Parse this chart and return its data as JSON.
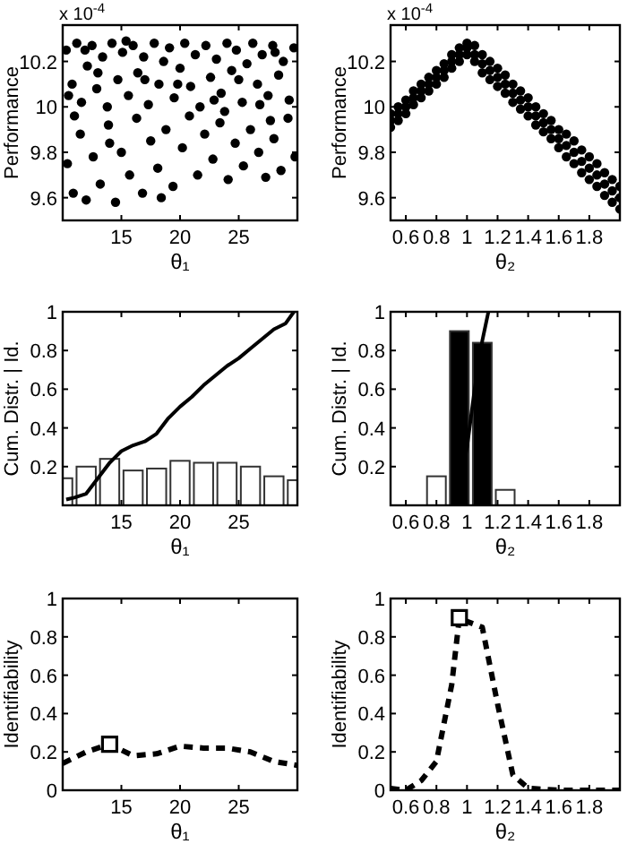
{
  "chart_data": [
    {
      "type": "scatter",
      "xlabel": "θ₁",
      "ylabel": "Performance",
      "annotations": [
        "x 10$^{-4}$"
      ],
      "xlim": [
        10,
        30
      ],
      "xticks": [
        15,
        20,
        25
      ],
      "ylim": [
        9.5,
        10.36
      ],
      "yticks": [
        9.6,
        9.8,
        10,
        10.2
      ],
      "marker": "circle",
      "series": [
        {
          "color": "#000000",
          "x": [
            10.3,
            10.8,
            11.2,
            11.6,
            12.1,
            12.5,
            12.9,
            13.4,
            13.8,
            14.2,
            14.7,
            15.1,
            15.6,
            16.0,
            16.4,
            16.9,
            17.3,
            17.8,
            18.2,
            18.6,
            19.1,
            19.5,
            20.0,
            20.4,
            20.9,
            21.3,
            21.7,
            22.2,
            22.6,
            23.1,
            23.5,
            24.0,
            24.4,
            24.8,
            25.3,
            25.7,
            26.2,
            26.6,
            27.0,
            27.5,
            27.9,
            28.4,
            28.8,
            29.3,
            29.7,
            10.5,
            11.9,
            13.0,
            15.4,
            17.0,
            19.8,
            22.9,
            25.0,
            26.8,
            28.1,
            10.4,
            10.9,
            11.5,
            12.0,
            12.6,
            13.2,
            13.9,
            14.5,
            15.0,
            15.7,
            16.3,
            16.8,
            17.5,
            18.1,
            18.8,
            19.4,
            20.2,
            20.8,
            21.5,
            22.1,
            22.8,
            23.4,
            24.1,
            24.7,
            25.4,
            26.0,
            26.7,
            27.3,
            28.0,
            28.6,
            29.2,
            29.8,
            11.0,
            14.0,
            18.4,
            23.8,
            27.7
          ],
          "values": [
            10.25,
            10.1,
            10.28,
            10.02,
            10.18,
            10.27,
            10.08,
            10.22,
            10.0,
            10.28,
            10.12,
            10.24,
            10.05,
            10.27,
            10.15,
            10.22,
            10.01,
            10.28,
            10.1,
            10.2,
            10.26,
            10.04,
            10.17,
            10.28,
            10.09,
            10.23,
            10.0,
            10.27,
            10.13,
            10.21,
            10.06,
            10.28,
            10.16,
            10.25,
            10.02,
            10.19,
            10.28,
            10.1,
            10.23,
            10.05,
            10.27,
            10.14,
            10.2,
            10.03,
            10.26,
            10.05,
            10.25,
            10.15,
            10.29,
            10.12,
            10.1,
            10.03,
            10.12,
            10.01,
            10.24,
            9.75,
            9.62,
            9.88,
            9.59,
            9.78,
            9.66,
            9.92,
            9.58,
            9.8,
            9.7,
            9.95,
            9.62,
            9.85,
            9.73,
            9.9,
            9.65,
            9.82,
            9.96,
            9.7,
            9.88,
            9.77,
            9.93,
            9.68,
            9.84,
            9.74,
            9.9,
            9.8,
            9.69,
            9.86,
            9.72,
            9.95,
            9.78,
            9.96,
            9.84,
            9.6,
            9.98,
            9.94
          ]
        }
      ]
    },
    {
      "type": "scatter",
      "xlabel": "θ₂",
      "ylabel": "Performance",
      "annotations": [
        "x 10$^{-4}$"
      ],
      "xlim": [
        0.5,
        2.0
      ],
      "xticks": [
        0.6,
        0.8,
        1,
        1.2,
        1.4,
        1.6,
        1.8
      ],
      "ylim": [
        9.5,
        10.36
      ],
      "yticks": [
        9.6,
        9.8,
        10,
        10.2
      ],
      "marker": "circle",
      "series": [
        {
          "color": "#000000",
          "x": [
            0.5,
            0.5,
            0.5,
            0.55,
            0.55,
            0.55,
            0.6,
            0.6,
            0.6,
            0.65,
            0.65,
            0.65,
            0.7,
            0.7,
            0.7,
            0.75,
            0.75,
            0.75,
            0.8,
            0.8,
            0.8,
            0.85,
            0.85,
            0.85,
            0.9,
            0.9,
            0.9,
            0.95,
            0.95,
            0.95,
            1.0,
            1.0,
            1.0,
            1.05,
            1.05,
            1.05,
            1.1,
            1.1,
            1.1,
            1.15,
            1.15,
            1.15,
            1.2,
            1.2,
            1.2,
            1.25,
            1.25,
            1.25,
            1.3,
            1.3,
            1.3,
            1.35,
            1.35,
            1.35,
            1.4,
            1.4,
            1.4,
            1.45,
            1.45,
            1.45,
            1.5,
            1.5,
            1.5,
            1.55,
            1.55,
            1.55,
            1.6,
            1.6,
            1.6,
            1.65,
            1.65,
            1.65,
            1.7,
            1.7,
            1.7,
            1.75,
            1.75,
            1.75,
            1.8,
            1.8,
            1.8,
            1.85,
            1.85,
            1.85,
            1.9,
            1.9,
            1.9,
            1.95,
            1.95,
            1.95,
            2.0,
            2.0,
            2.0
          ],
          "values": [
            9.91,
            9.94,
            9.97,
            9.94,
            9.97,
            10.0,
            9.97,
            10.0,
            10.03,
            10.01,
            10.04,
            10.07,
            10.04,
            10.07,
            10.1,
            10.07,
            10.1,
            10.13,
            10.1,
            10.13,
            10.16,
            10.13,
            10.16,
            10.19,
            10.17,
            10.2,
            10.23,
            10.2,
            10.23,
            10.26,
            10.23,
            10.26,
            10.28,
            10.2,
            10.23,
            10.27,
            10.15,
            10.19,
            10.23,
            10.12,
            10.16,
            10.2,
            10.09,
            10.13,
            10.17,
            10.06,
            10.1,
            10.14,
            10.02,
            10.06,
            10.1,
            9.99,
            10.03,
            10.07,
            9.96,
            10.0,
            10.04,
            9.92,
            9.96,
            10.0,
            9.89,
            9.93,
            9.97,
            9.86,
            9.9,
            9.94,
            9.82,
            9.86,
            9.9,
            9.78,
            9.83,
            9.88,
            9.75,
            9.8,
            9.85,
            9.71,
            9.76,
            9.81,
            9.68,
            9.73,
            9.78,
            9.65,
            9.7,
            9.75,
            9.61,
            9.66,
            9.71,
            9.58,
            9.63,
            9.68,
            9.55,
            9.6,
            9.65
          ]
        }
      ]
    },
    {
      "type": "bar",
      "xlabel": "θ₁",
      "ylabel": "Cum. Distr. | Id.",
      "xlim": [
        10,
        30
      ],
      "xticks": [
        15,
        20,
        25
      ],
      "ylim": [
        0,
        1
      ],
      "yticks": [
        0.2,
        0.4,
        0.6,
        0.8,
        1
      ],
      "series": [
        {
          "color": "#ffffff",
          "x": [
            10,
            12,
            14,
            16,
            18,
            20,
            22,
            24,
            26,
            28,
            30
          ],
          "values": [
            0.14,
            0.2,
            0.24,
            0.18,
            0.19,
            0.23,
            0.22,
            0.22,
            0.2,
            0.15,
            0.13
          ]
        },
        {
          "type": "line",
          "color": "#000000",
          "x": [
            10.3,
            11,
            12,
            13,
            14,
            15,
            16,
            17,
            18,
            19,
            20,
            21,
            22,
            23,
            24,
            25,
            26,
            27,
            28,
            29,
            29.7
          ],
          "values": [
            0.03,
            0.04,
            0.06,
            0.14,
            0.22,
            0.28,
            0.31,
            0.33,
            0.37,
            0.45,
            0.51,
            0.56,
            0.62,
            0.67,
            0.72,
            0.76,
            0.81,
            0.86,
            0.91,
            0.94,
            1.0
          ]
        }
      ]
    },
    {
      "type": "bar",
      "xlabel": "θ₂",
      "ylabel": "Cum. Distr. | Id.",
      "xlim": [
        0.5,
        2.0
      ],
      "xticks": [
        0.6,
        0.8,
        1,
        1.2,
        1.4,
        1.6,
        1.8
      ],
      "ylim": [
        0,
        1
      ],
      "yticks": [
        0.2,
        0.4,
        0.6,
        0.8,
        1
      ],
      "series": [
        {
          "colors": [
            "#ffffff",
            "#000000",
            "#000000",
            "#ffffff"
          ],
          "x": [
            0.8,
            0.95,
            1.1,
            1.25
          ],
          "values": [
            0.15,
            0.9,
            0.84,
            0.08
          ]
        },
        {
          "type": "line",
          "color": "#000000",
          "x": [
            0.93,
            1.0,
            1.05,
            1.1,
            1.14
          ],
          "values": [
            0.0,
            0.3,
            0.6,
            0.85,
            1.0
          ]
        }
      ]
    },
    {
      "type": "line",
      "xlabel": "θ₁",
      "ylabel": "Identifiability",
      "xlim": [
        10,
        30
      ],
      "xticks": [
        15,
        20,
        25
      ],
      "ylim": [
        0,
        1
      ],
      "yticks": [
        0,
        0.2,
        0.4,
        0.6,
        0.8,
        1
      ],
      "line_style": "dashed",
      "series": [
        {
          "color": "#000000",
          "x": [
            10,
            12,
            14,
            16,
            18,
            20,
            22,
            24,
            26,
            28,
            30
          ],
          "values": [
            0.14,
            0.2,
            0.24,
            0.18,
            0.19,
            0.23,
            0.22,
            0.22,
            0.2,
            0.15,
            0.13
          ]
        },
        {
          "type": "scatter",
          "marker": "square",
          "color": "#000000",
          "x": [
            14
          ],
          "values": [
            0.24
          ]
        }
      ]
    },
    {
      "type": "line",
      "xlabel": "θ₂",
      "ylabel": "Identifiability",
      "xlim": [
        0.5,
        2.0
      ],
      "xticks": [
        0.6,
        0.8,
        1,
        1.2,
        1.4,
        1.6,
        1.8
      ],
      "ylim": [
        0,
        1
      ],
      "yticks": [
        0,
        0.2,
        0.4,
        0.6,
        0.8,
        1
      ],
      "line_style": "dashed",
      "series": [
        {
          "color": "#000000",
          "x": [
            0.5,
            0.6,
            0.7,
            0.8,
            0.9,
            0.95,
            1.0,
            1.1,
            1.2,
            1.3,
            1.4,
            1.6,
            1.8,
            2.0
          ],
          "values": [
            0.01,
            0.0,
            0.05,
            0.15,
            0.55,
            0.9,
            0.88,
            0.85,
            0.45,
            0.08,
            0.01,
            0,
            0,
            0
          ]
        },
        {
          "type": "scatter",
          "marker": "square",
          "color": "#000000",
          "x": [
            0.95
          ],
          "values": [
            0.9
          ]
        }
      ]
    }
  ]
}
